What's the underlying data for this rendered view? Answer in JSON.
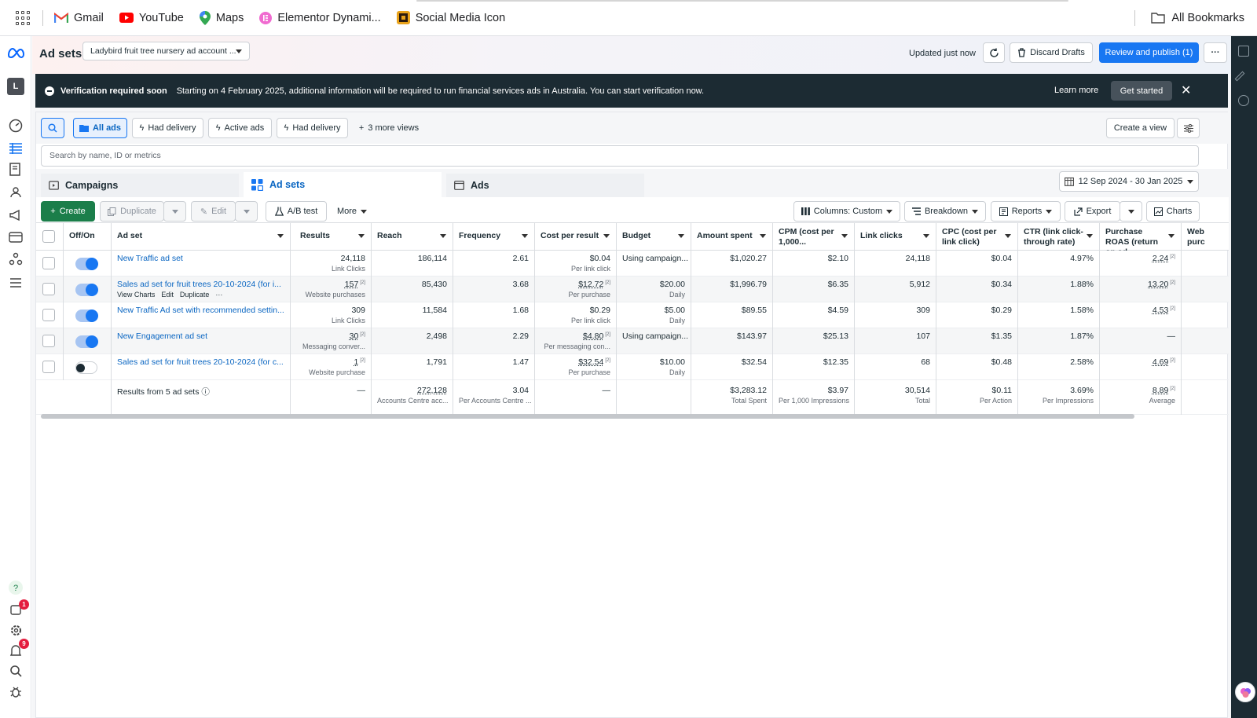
{
  "bookmarks": {
    "items": [
      "Gmail",
      "YouTube",
      "Maps",
      "Elementor Dynami...",
      "Social Media Icon"
    ],
    "all_bookmarks": "All Bookmarks"
  },
  "header": {
    "title": "Ad sets",
    "account": "Ladybird fruit tree nursery ad account ...",
    "updated": "Updated just now",
    "discard": "Discard Drafts",
    "review": "Review and publish (1)"
  },
  "banner": {
    "title": "Verification required soon",
    "message": "Starting on 4 February 2025, additional information will be required to run financial services ads in Australia. You can start verification now.",
    "learn_more": "Learn more",
    "get_started": "Get started"
  },
  "views": {
    "all_ads": "All ads",
    "had_delivery_1": "Had delivery",
    "active_ads": "Active ads",
    "had_delivery_2": "Had delivery",
    "more_views": "3 more views",
    "create_view": "Create a view",
    "search_placeholder": "Search by name, ID or metrics"
  },
  "tabs": {
    "campaigns": "Campaigns",
    "ad_sets": "Ad sets",
    "ads": "Ads",
    "date_range": "12 Sep 2024 - 30 Jan 2025"
  },
  "toolbar": {
    "create": "Create",
    "duplicate": "Duplicate",
    "edit": "Edit",
    "ab_test": "A/B test",
    "more": "More",
    "columns": "Columns: Custom",
    "breakdown": "Breakdown",
    "reports": "Reports",
    "export": "Export",
    "charts": "Charts"
  },
  "table": {
    "headers": {
      "onoff": "Off/On",
      "adset": "Ad set",
      "results": "Results",
      "reach": "Reach",
      "frequency": "Frequency",
      "cpr": "Cost per result",
      "budget": "Budget",
      "spent": "Amount spent",
      "cpm": "CPM (cost per 1,000...",
      "clicks": "Link clicks",
      "cpc": "CPC (cost per link click)",
      "ctr": "CTR (link click-through rate)",
      "roas": "Purchase ROAS (return on ad...",
      "web": "Web purc"
    },
    "hover_actions": {
      "view_charts": "View Charts",
      "edit": "Edit",
      "duplicate": "Duplicate"
    },
    "rows": [
      {
        "name": "New Traffic ad set",
        "on": true,
        "results": "24,118",
        "results_sub": "Link Clicks",
        "reach": "186,114",
        "frequency": "2.61",
        "cpr": "$0.04",
        "cpr_sub": "Per link click",
        "budget": "Using campaign...",
        "budget_sub": "",
        "spent": "$1,020.27",
        "cpm": "$2.10",
        "clicks": "24,118",
        "cpc": "$0.04",
        "ctr": "4.97%",
        "roas": "2.24"
      },
      {
        "name": "Sales ad set for fruit trees 20-10-2024 (for i...",
        "on": true,
        "results": "157",
        "results_sub": "Website purchases",
        "reach": "85,430",
        "frequency": "3.68",
        "cpr": "$12.72",
        "cpr_sub": "Per purchase",
        "budget": "$20.00",
        "budget_sub": "Daily",
        "spent": "$1,996.79",
        "cpm": "$6.35",
        "clicks": "5,912",
        "cpc": "$0.34",
        "ctr": "1.88%",
        "roas": "13.20"
      },
      {
        "name": "New Traffic Ad set with recommended settin...",
        "on": true,
        "results": "309",
        "results_sub": "Link Clicks",
        "reach": "11,584",
        "frequency": "1.68",
        "cpr": "$0.29",
        "cpr_sub": "Per link click",
        "budget": "$5.00",
        "budget_sub": "Daily",
        "spent": "$89.55",
        "cpm": "$4.59",
        "clicks": "309",
        "cpc": "$0.29",
        "ctr": "1.58%",
        "roas": "4.53"
      },
      {
        "name": "New Engagement ad set",
        "on": true,
        "results": "30",
        "results_sub": "Messaging conver...",
        "reach": "2,498",
        "frequency": "2.29",
        "cpr": "$4.80",
        "cpr_sub": "Per messaging con...",
        "budget": "Using campaign...",
        "budget_sub": "",
        "spent": "$143.97",
        "cpm": "$25.13",
        "clicks": "107",
        "cpc": "$1.35",
        "ctr": "1.87%",
        "roas": "—"
      },
      {
        "name": "Sales ad set for fruit trees 20-10-2024 (for c...",
        "on": false,
        "results": "1",
        "results_sub": "Website purchase",
        "reach": "1,791",
        "frequency": "1.47",
        "cpr": "$32.54",
        "cpr_sub": "Per purchase",
        "budget": "$10.00",
        "budget_sub": "Daily",
        "spent": "$32.54",
        "cpm": "$12.35",
        "clicks": "68",
        "cpc": "$0.48",
        "ctr": "2.58%",
        "roas": "4.69"
      }
    ],
    "totals": {
      "label": "Results from 5 ad sets",
      "results": "—",
      "reach": "272,128",
      "reach_sub": "Accounts Centre acc...",
      "frequency": "3.04",
      "frequency_sub": "Per Accounts Centre ...",
      "cpr": "—",
      "spent": "$3,283.12",
      "spent_sub": "Total Spent",
      "cpm": "$3.97",
      "cpm_sub": "Per 1,000 Impressions",
      "clicks": "30,514",
      "clicks_sub": "Total",
      "cpc": "$0.11",
      "cpc_sub": "Per Action",
      "ctr": "3.69%",
      "ctr_sub": "Per Impressions",
      "roas": "8.89",
      "roas_sub": "Average"
    }
  },
  "nav_badges": {
    "notifications": "1",
    "alerts": "9"
  }
}
